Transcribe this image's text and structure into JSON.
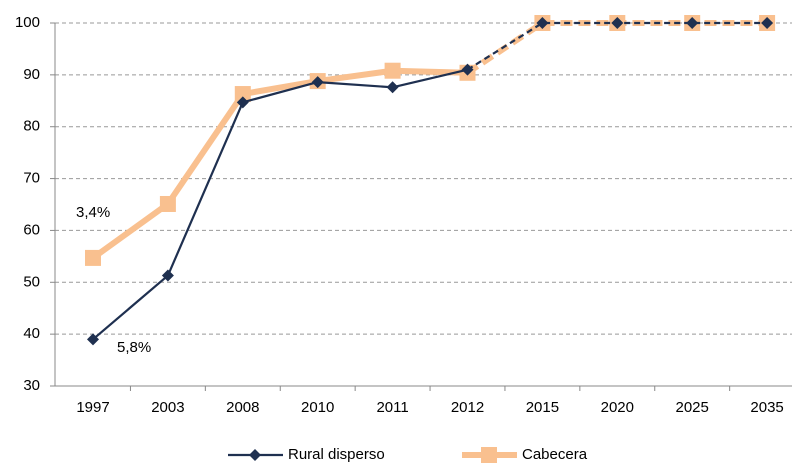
{
  "chart_data": {
    "type": "line",
    "categories": [
      "1997",
      "2003",
      "2008",
      "2010",
      "2011",
      "2012",
      "2015",
      "2020",
      "2025",
      "2035"
    ],
    "series": [
      {
        "name": "Rural disperso",
        "color": "#1f3050",
        "marker": "diamond",
        "values": [
          39,
          51.3,
          84.7,
          88.6,
          87.6,
          91,
          100,
          100,
          100,
          100
        ]
      },
      {
        "name": "Cabecera",
        "color": "#f9c08f",
        "marker": "square",
        "values": [
          54.7,
          65.1,
          86.3,
          88.8,
          90.8,
          90.4,
          100,
          100,
          100,
          100
        ]
      }
    ],
    "dashed_from_index": 5,
    "annotations": [
      "3,4%",
      "5,8%"
    ],
    "ylim": [
      30,
      100
    ],
    "yticks": [
      30,
      40,
      50,
      60,
      70,
      80,
      90,
      100
    ],
    "grid": true,
    "legend": "bottom"
  }
}
